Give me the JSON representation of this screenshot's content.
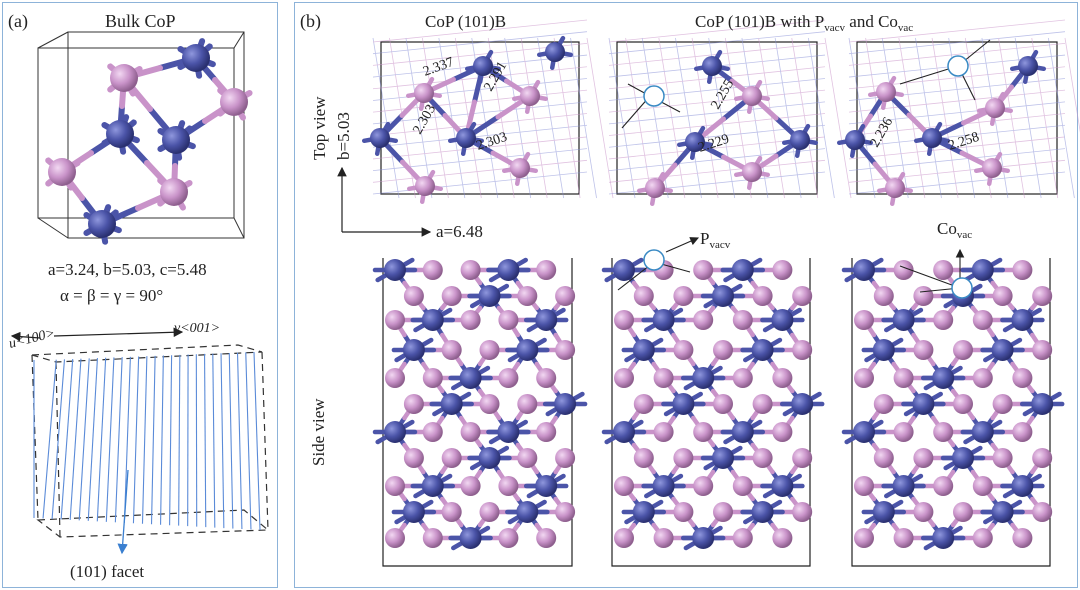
{
  "panel_a": {
    "label": "(a)",
    "title": "Bulk CoP",
    "lattice": "a=3.24, b=5.03, c=5.48",
    "angles": "α = β = γ = 90°",
    "u_axis": "u<100>",
    "v_axis": "v<001>",
    "facet": "(101) facet"
  },
  "panel_b": {
    "label": "(b)",
    "title_left": "CoP (101)B",
    "title_right": "CoP (101)B with P",
    "title_right_sub1": "vacv",
    "title_right_and": " and Co",
    "title_right_sub2": "vac",
    "top_view": "Top view",
    "side_view": "Side view",
    "b_axis": "b=5.03",
    "a_axis": "a=6.48",
    "p_vac_label": "P",
    "p_vac_sub": "vacv",
    "co_vac_label": "Co",
    "co_vac_sub": "vac",
    "bonds_pristine": [
      "2.337",
      "2.291",
      "2.303",
      "2.303"
    ],
    "bonds_pvac": [
      "2.255",
      "2.229"
    ],
    "bonds_covac": [
      "2.236",
      "2.258"
    ]
  },
  "colors": {
    "co": "#4b54a8",
    "p": "#c993c9",
    "frame": "#8db3d9"
  }
}
